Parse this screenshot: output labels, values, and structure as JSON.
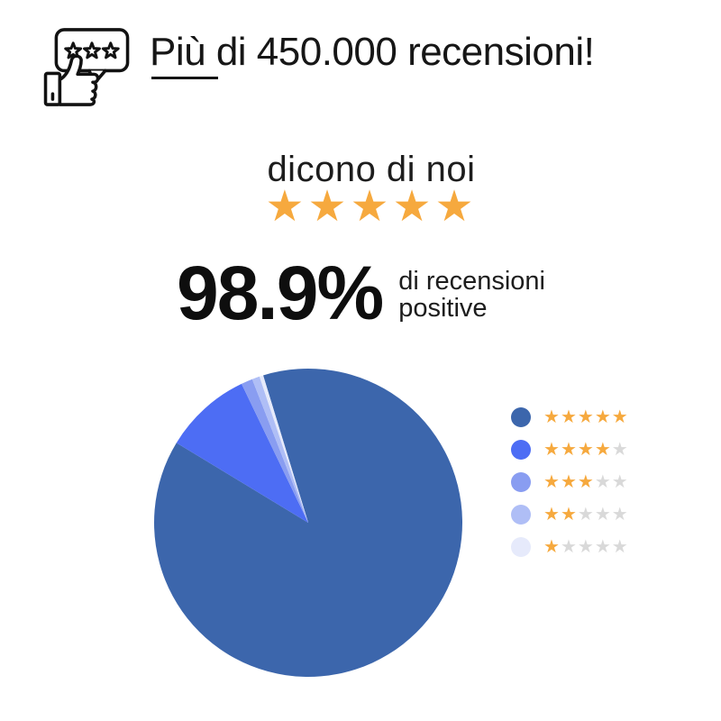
{
  "header": {
    "icon": "review-stars-thumbs-up-icon",
    "title": "Più di 450.000 recensioni!"
  },
  "tagline": {
    "text": "dicono di noi",
    "stars": 5
  },
  "stat": {
    "value": "98.9%",
    "label_line1": "di recensioni",
    "label_line2": "positive"
  },
  "chart_data": {
    "type": "pie",
    "categories": [
      "5★",
      "4★",
      "3★",
      "2★",
      "1★"
    ],
    "values": [
      88.4,
      9.2,
      1.2,
      0.8,
      0.4
    ],
    "unit": "percent",
    "colors": [
      "#3C66AC",
      "#4D6DF4",
      "#899DF1",
      "#AFBEF6",
      "#E6EAFB"
    ],
    "start_angle_deg": -17,
    "direction": "clockwise",
    "legend_position": "right",
    "legend_items": [
      {
        "stars": 5,
        "color": "#3C66AC"
      },
      {
        "stars": 4,
        "color": "#4D6DF4"
      },
      {
        "stars": 3,
        "color": "#899DF1"
      },
      {
        "stars": 2,
        "color": "#AFBEF6"
      },
      {
        "stars": 1,
        "color": "#E6EAFB"
      }
    ],
    "star_on_color": "#F6A93E",
    "star_off_color": "#D9D9D9"
  },
  "colors": {
    "background": "#FFFFFF",
    "text": "#161616",
    "accent_orange": "#F6A93E",
    "pie_main_blue": "#3C66AC"
  },
  "glyphs": {
    "star": "★"
  }
}
